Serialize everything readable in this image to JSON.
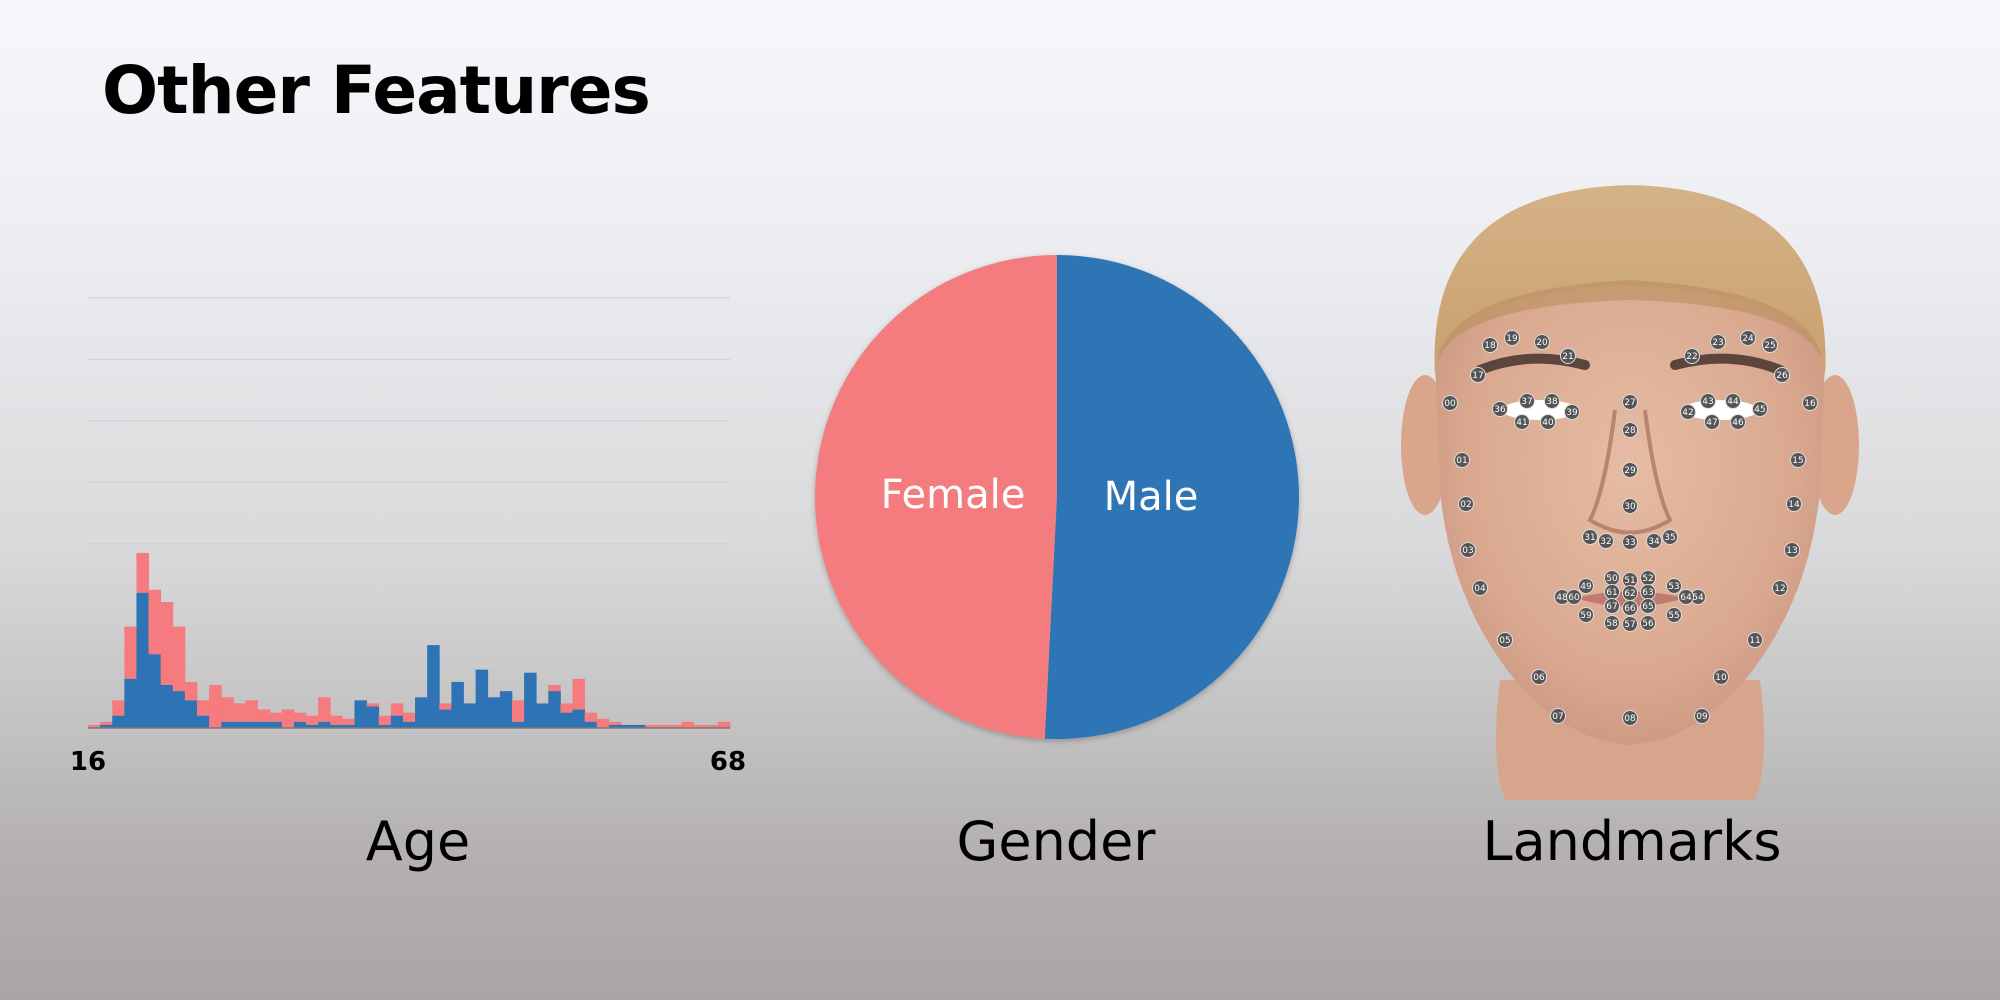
{
  "title": "Other Features",
  "labels": {
    "age": "Age",
    "gender": "Gender",
    "landmarks": "Landmarks"
  },
  "colors": {
    "female": "#f57b7e",
    "male": "#2e74b5"
  },
  "chart_data": [
    {
      "type": "bar",
      "title": "",
      "xlabel": "",
      "ylabel": "",
      "tick_labels": [
        "16",
        "68"
      ],
      "xlim": [
        16,
        68
      ],
      "ylim": [
        0,
        7
      ],
      "grid": true,
      "stacked": true,
      "x": [
        16,
        17,
        18,
        19,
        20,
        21,
        22,
        23,
        24,
        25,
        26,
        27,
        28,
        29,
        30,
        31,
        32,
        33,
        34,
        35,
        36,
        37,
        38,
        39,
        40,
        41,
        42,
        43,
        44,
        45,
        46,
        47,
        48,
        49,
        50,
        51,
        52,
        53,
        54,
        55,
        56,
        57,
        58,
        59,
        60,
        61,
        62,
        63,
        64,
        65,
        66,
        67,
        68
      ],
      "series": [
        {
          "values": [
            0.05,
            0.1,
            0.45,
            1.65,
            2.85,
            2.25,
            2.05,
            1.65,
            0.75,
            0.45,
            0.7,
            0.5,
            0.4,
            0.45,
            0.3,
            0.25,
            0.3,
            0.25,
            0.2,
            0.5,
            0.2,
            0.15,
            0.2,
            0.4,
            0.2,
            0.4,
            0.25,
            0.4,
            0.4,
            0.4,
            0.45,
            0.4,
            0.45,
            0.3,
            0.25,
            0.45,
            0.45,
            0.25,
            0.7,
            0.4,
            0.8,
            0.25,
            0.15,
            0.1,
            0.05,
            0.05,
            0.05,
            0.05,
            0.05,
            0.1,
            0.05,
            0.05,
            0.1
          ]
        },
        {
          "values": [
            0.0,
            0.05,
            0.2,
            0.8,
            2.2,
            1.2,
            0.7,
            0.6,
            0.45,
            0.2,
            0.0,
            0.1,
            0.1,
            0.1,
            0.1,
            0.1,
            0.0,
            0.1,
            0.05,
            0.1,
            0.05,
            0.05,
            0.45,
            0.35,
            0.05,
            0.2,
            0.1,
            0.5,
            1.35,
            0.3,
            0.75,
            0.4,
            0.95,
            0.5,
            0.6,
            0.1,
            0.9,
            0.4,
            0.6,
            0.25,
            0.3,
            0.1,
            0.0,
            0.05,
            0.05,
            0.05,
            0.0,
            0.0,
            0.0,
            0.0,
            0.0,
            0.0,
            0.0
          ]
        }
      ]
    },
    {
      "type": "pie",
      "categories": [
        "Female",
        "Male"
      ],
      "values": [
        49.2,
        50.8
      ]
    }
  ],
  "landmarks": [
    "00",
    "01",
    "02",
    "03",
    "04",
    "05",
    "06",
    "07",
    "08",
    "09",
    "10",
    "11",
    "12",
    "13",
    "14",
    "15",
    "16",
    "17",
    "18",
    "19",
    "20",
    "21",
    "22",
    "23",
    "24",
    "25",
    "26",
    "27",
    "28",
    "29",
    "30",
    "31",
    "32",
    "33",
    "34",
    "35",
    "36",
    "37",
    "38",
    "39",
    "40",
    "41",
    "42",
    "43",
    "44",
    "45",
    "46",
    "47",
    "48",
    "49",
    "50",
    "51",
    "52",
    "53",
    "54",
    "55",
    "56",
    "57",
    "58",
    "59",
    "60",
    "61",
    "62",
    "63",
    "64",
    "65",
    "66",
    "67"
  ]
}
